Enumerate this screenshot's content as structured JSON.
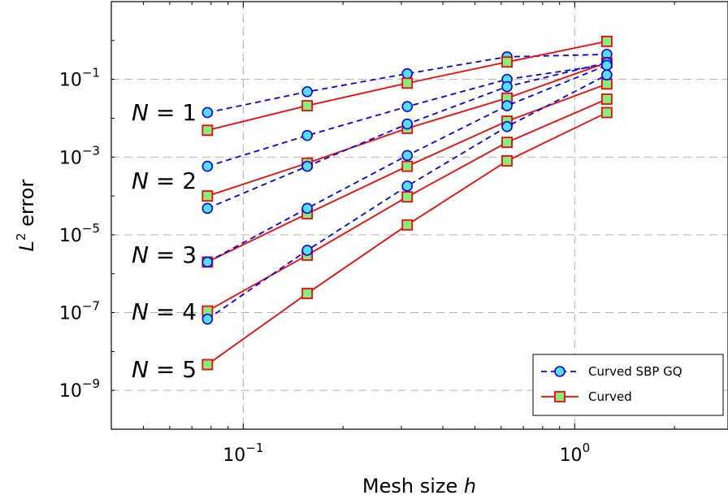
{
  "chart_data": {
    "type": "line",
    "xlabel": "Mesh size h",
    "ylabel": "L2 error",
    "x_scale": "log",
    "y_scale": "log",
    "xlim": [
      0.04,
      2.9
    ],
    "ylim": [
      1e-10,
      10
    ],
    "grid": true,
    "legend_position": "bottom-right",
    "x_ticks": [
      {
        "value": 0.1,
        "base": "10",
        "exp": "−1"
      },
      {
        "value": 1,
        "base": "10",
        "exp": "0"
      }
    ],
    "y_ticks": [
      {
        "value": 0.1,
        "base": "10",
        "exp": "−1"
      },
      {
        "value": 0.001,
        "base": "10",
        "exp": "−3"
      },
      {
        "value": 1e-05,
        "base": "10",
        "exp": "−5"
      },
      {
        "value": 1e-07,
        "base": "10",
        "exp": "−7"
      },
      {
        "value": 1e-09,
        "base": "10",
        "exp": "−9"
      }
    ],
    "x": [
      0.078,
      0.156,
      0.3125,
      0.625,
      1.25
    ],
    "series": [
      {
        "group": "Curved SBP GQ",
        "N": 1,
        "values": [
          0.014,
          0.048,
          0.14,
          0.38,
          0.44
        ]
      },
      {
        "group": "Curved",
        "N": 1,
        "values": [
          0.0049,
          0.021,
          0.08,
          0.28,
          0.95
        ]
      },
      {
        "group": "Curved SBP GQ",
        "N": 2,
        "values": [
          0.00058,
          0.0036,
          0.02,
          0.1,
          0.24
        ]
      },
      {
        "group": "Curved",
        "N": 2,
        "values": [
          0.0001,
          0.0007,
          0.0055,
          0.033,
          0.27
        ]
      },
      {
        "group": "Curved SBP GQ",
        "N": 3,
        "values": [
          4.8e-05,
          0.00058,
          0.0071,
          0.065,
          0.27
        ]
      },
      {
        "group": "Curved",
        "N": 3,
        "values": [
          2e-06,
          3.5e-05,
          0.00058,
          0.0084,
          0.076
        ]
      },
      {
        "group": "Curved SBP GQ",
        "N": 4,
        "values": [
          2e-06,
          4.8e-05,
          0.0011,
          0.021,
          0.23
        ]
      },
      {
        "group": "Curved",
        "N": 4,
        "values": [
          1.1e-07,
          3e-06,
          9.5e-05,
          0.0024,
          0.031
        ]
      },
      {
        "group": "Curved SBP GQ",
        "N": 5,
        "values": [
          6.8e-08,
          4e-06,
          0.00018,
          0.0061,
          0.13
        ]
      },
      {
        "group": "Curved",
        "N": 5,
        "values": [
          4.6e-09,
          3.1e-07,
          1.8e-05,
          0.0008,
          0.014
        ]
      }
    ],
    "annotations": [
      "N = 1",
      "N = 2",
      "N = 3",
      "N = 4",
      "N = 5"
    ],
    "legend": [
      {
        "label": "Curved SBP GQ",
        "color": "#0000ff",
        "line": "dashed",
        "marker": "circle",
        "fill": "#55e0e8"
      },
      {
        "label": "Curved",
        "color": "#ff0000",
        "line": "solid",
        "marker": "square",
        "fill": "#80f080"
      }
    ]
  }
}
